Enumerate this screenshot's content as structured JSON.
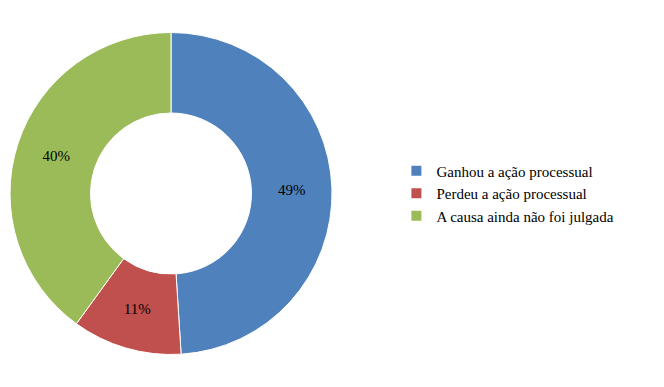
{
  "chart_data": {
    "type": "pie",
    "categories": [
      "Ganhou a ação processual",
      "Perdeu a ação processual",
      "A causa ainda não foi julgada"
    ],
    "values": [
      49,
      11,
      40
    ],
    "value_labels": [
      "49%",
      "11%",
      "40%"
    ],
    "colors": [
      "#4f81bd",
      "#c0504d",
      "#9bbb59"
    ],
    "data_labels": true,
    "legend": "right"
  }
}
